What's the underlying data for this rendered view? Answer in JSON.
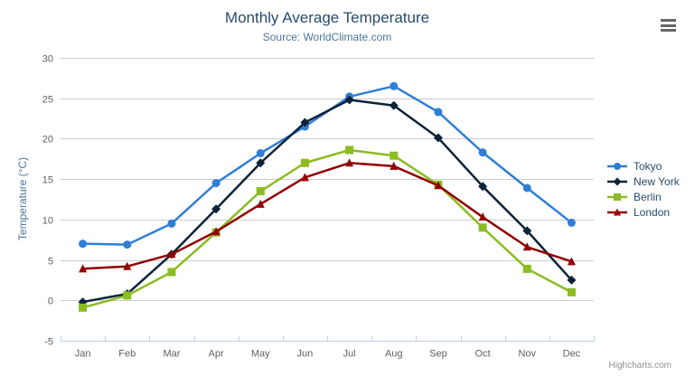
{
  "chart_data": {
    "type": "line",
    "title": "Monthly Average Temperature",
    "subtitle": "Source: WorldClimate.com",
    "categories": [
      "Jan",
      "Feb",
      "Mar",
      "Apr",
      "May",
      "Jun",
      "Jul",
      "Aug",
      "Sep",
      "Oct",
      "Nov",
      "Dec"
    ],
    "series": [
      {
        "name": "Tokyo",
        "color": "#2f7ed8",
        "marker": "circle",
        "values": [
          7.0,
          6.9,
          9.5,
          14.5,
          18.2,
          21.5,
          25.2,
          26.5,
          23.3,
          18.3,
          13.9,
          9.6
        ]
      },
      {
        "name": "New York",
        "color": "#0d233a",
        "marker": "diamond",
        "values": [
          -0.2,
          0.8,
          5.7,
          11.3,
          17.0,
          22.0,
          24.8,
          24.1,
          20.1,
          14.1,
          8.6,
          2.5
        ]
      },
      {
        "name": "Berlin",
        "color": "#8bbc21",
        "marker": "square",
        "values": [
          -0.9,
          0.6,
          3.5,
          8.4,
          13.5,
          17.0,
          18.6,
          17.9,
          14.3,
          9.0,
          3.9,
          1.0
        ]
      },
      {
        "name": "London",
        "color": "#910000",
        "marker": "triangle",
        "values": [
          3.9,
          4.2,
          5.7,
          8.5,
          11.9,
          15.2,
          17.0,
          16.6,
          14.2,
          10.3,
          6.6,
          4.8
        ]
      }
    ],
    "xlabel": "",
    "ylabel": "Temperature (°C)",
    "ylim": [
      -5,
      30
    ],
    "ytick_interval": 5,
    "grid": true,
    "legend_position": "right",
    "credits": "Highcharts.com"
  },
  "icons": {
    "export_menu": "hamburger-icon"
  },
  "colors": {
    "title": "#274b6d",
    "subtitle": "#4d759e",
    "axis_title": "#4d759e",
    "axis_label": "#606060",
    "grid_line": "#cccccc",
    "axis_line": "#c0d0e0",
    "legend_text": "#274b6d",
    "credits": "#909090",
    "export_icon": "#666666"
  }
}
